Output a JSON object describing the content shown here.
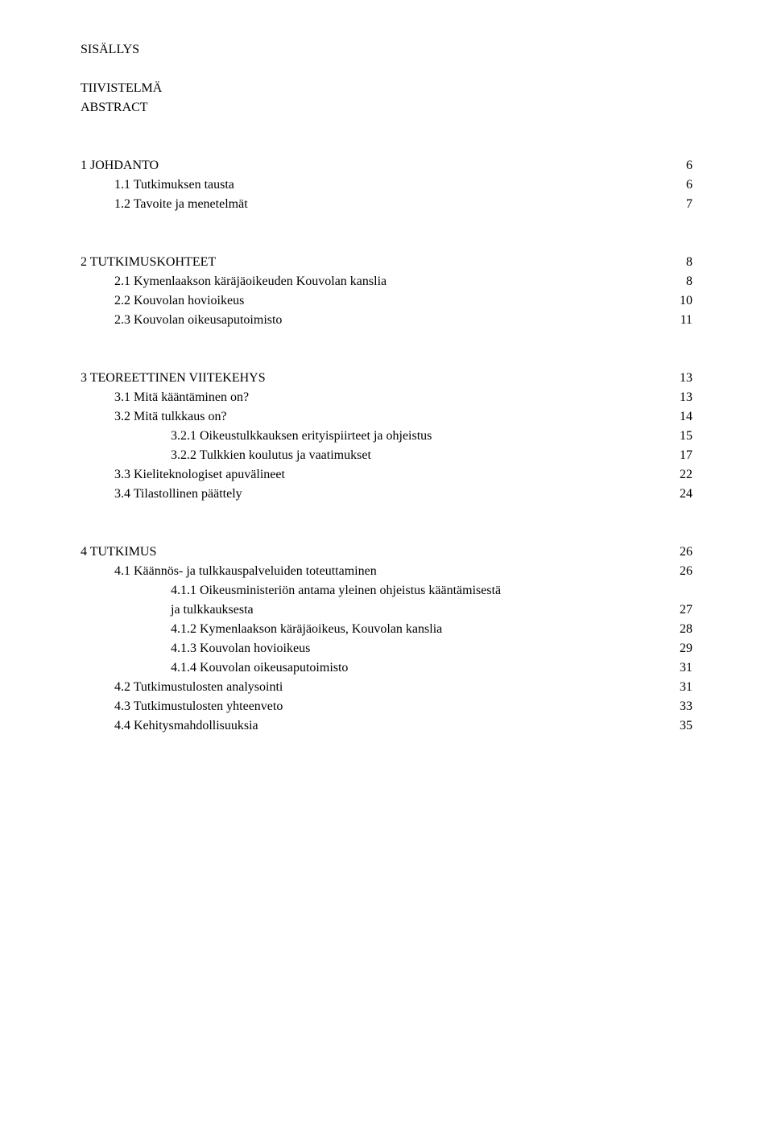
{
  "title": "SISÄLLYS",
  "frontmatter": [
    "TIIVISTELMÄ",
    "ABSTRACT"
  ],
  "sections": [
    {
      "head": {
        "label": "1 JOHDANTO",
        "page": "6"
      },
      "items": [
        {
          "label": "1.1 Tutkimuksen tausta",
          "page": "6",
          "indent": 1
        },
        {
          "label": "1.2 Tavoite ja menetelmät",
          "page": "7",
          "indent": 1
        }
      ]
    },
    {
      "head": {
        "label": "2 TUTKIMUSKOHTEET",
        "page": "8"
      },
      "items": [
        {
          "label": "2.1 Kymenlaakson käräjäoikeuden Kouvolan kanslia",
          "page": "8",
          "indent": 1
        },
        {
          "label": "2.2 Kouvolan hovioikeus",
          "page": "10",
          "indent": 1
        },
        {
          "label": "2.3 Kouvolan oikeusaputoimisto",
          "page": "11",
          "indent": 1
        }
      ]
    },
    {
      "head": {
        "label": "3 TEOREETTINEN VIITEKEHYS",
        "page": "13"
      },
      "items": [
        {
          "label": "3.1 Mitä kääntäminen on?",
          "page": "13",
          "indent": 1
        },
        {
          "label": "3.2 Mitä tulkkaus on?",
          "page": "14",
          "indent": 1
        },
        {
          "label": "3.2.1 Oikeustulkkauksen erityispiirteet ja ohjeistus",
          "page": "15",
          "indent": 2
        },
        {
          "label": "3.2.2 Tulkkien koulutus ja vaatimukset",
          "page": "17",
          "indent": 2
        },
        {
          "label": "3.3 Kieliteknologiset apuvälineet",
          "page": "22",
          "indent": 1
        },
        {
          "label": "3.4 Tilastollinen päättely",
          "page": "24",
          "indent": 1
        }
      ]
    },
    {
      "head": {
        "label": "4 TUTKIMUS",
        "page": "26"
      },
      "items": [
        {
          "label": "4.1 Käännös- ja tulkkauspalveluiden toteuttaminen",
          "page": "26",
          "indent": 1
        },
        {
          "label": "4.1.1 Oikeusministeriön antama yleinen ohjeistus kääntämisestä",
          "page": "",
          "indent": 2
        },
        {
          "label": "ja tulkkauksesta",
          "page": "27",
          "indent": 2
        },
        {
          "label": "4.1.2 Kymenlaakson käräjäoikeus, Kouvolan kanslia",
          "page": "28",
          "indent": 2
        },
        {
          "label": "4.1.3 Kouvolan hovioikeus",
          "page": "29",
          "indent": 2
        },
        {
          "label": "4.1.4 Kouvolan oikeusaputoimisto",
          "page": "31",
          "indent": 2
        },
        {
          "label": "4.2 Tutkimustulosten analysointi",
          "page": "31",
          "indent": 1
        },
        {
          "label": "4.3 Tutkimustulosten yhteenveto",
          "page": "33",
          "indent": 1
        },
        {
          "label": "4.4 Kehitysmahdollisuuksia",
          "page": "35",
          "indent": 1
        }
      ]
    }
  ]
}
